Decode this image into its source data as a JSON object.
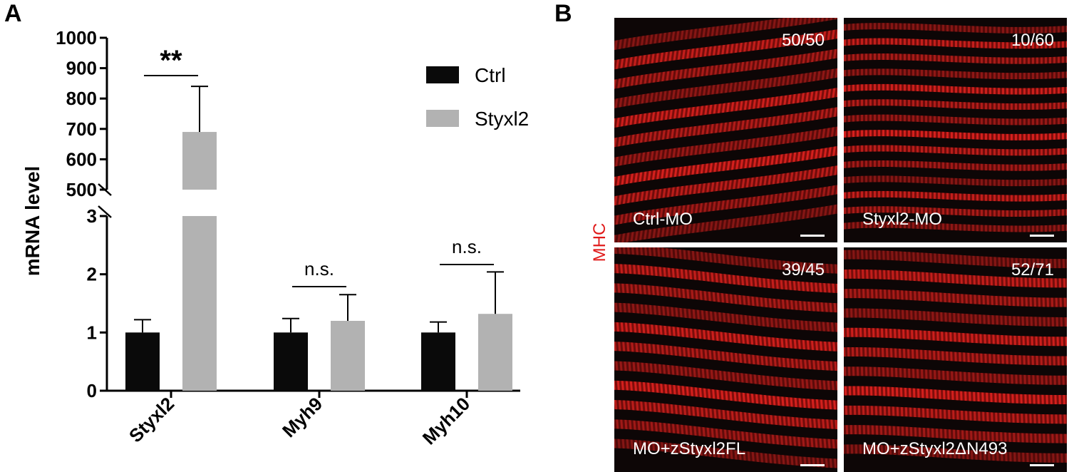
{
  "panel_a_letter": "A",
  "panel_b_letter": "B",
  "chart_data": {
    "type": "bar",
    "ylabel": "mRNA level",
    "categories": [
      "Styxl2",
      "Myh9",
      "Myh10"
    ],
    "series": [
      {
        "name": "Ctrl",
        "values": [
          1.0,
          1.0,
          1.0
        ],
        "errors": [
          0.22,
          0.24,
          0.18
        ],
        "color": "#0a0a0a"
      },
      {
        "name": "Styxl2",
        "values": [
          690,
          1.2,
          1.32
        ],
        "errors": [
          150,
          0.45,
          0.72
        ],
        "color": "#b2b2b2"
      }
    ],
    "y_axis_broken": true,
    "y_lower": {
      "range": [
        0,
        3
      ],
      "ticks": [
        "0",
        "1",
        "2",
        "3"
      ]
    },
    "y_upper": {
      "range": [
        500,
        1000
      ],
      "ticks": [
        "500",
        "600",
        "700",
        "800",
        "900",
        "1000"
      ]
    },
    "significance": [
      "**",
      "n.s.",
      "n.s."
    ],
    "legend_position": "top-right"
  },
  "panel_b": {
    "stain_label": "MHC",
    "panels": [
      {
        "label": "Ctrl-MO",
        "count": "50/50"
      },
      {
        "label": "Styxl2-MO",
        "count": "10/60"
      },
      {
        "label": "MO+zStyxl2FL",
        "count": "39/45"
      },
      {
        "label": "MO+zStyxl2ΔN493",
        "count": "52/71"
      }
    ]
  }
}
